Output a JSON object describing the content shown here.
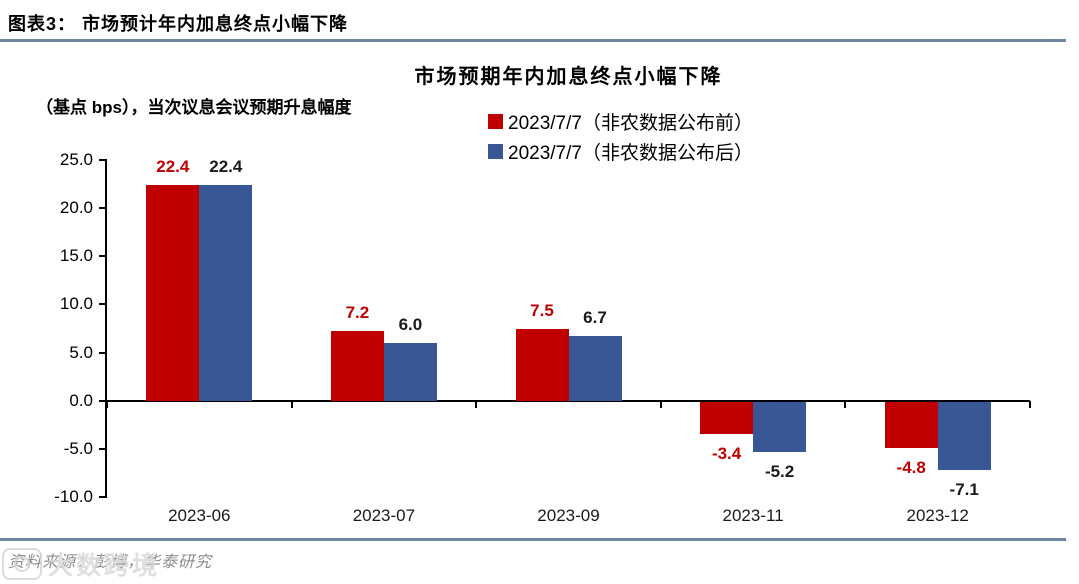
{
  "header": {
    "title": "图表3：  市场预计年内加息终点小幅下降"
  },
  "chart_data": {
    "type": "bar",
    "title": "市场预期年内加息终点小幅下降",
    "unit_label": "（基点 bps），当次议息会议预期升息幅度",
    "categories": [
      "2023-06",
      "2023-07",
      "2023-09",
      "2023-11",
      "2023-12"
    ],
    "series": [
      {
        "name": "2023/7/7（非农数据公布前）",
        "color": "#c00000",
        "label_color": "#c00000",
        "values": [
          22.4,
          7.2,
          7.5,
          -3.4,
          -4.8
        ]
      },
      {
        "name": "2023/7/7（非农数据公布后）",
        "color": "#3a5795",
        "label_color": "#1a1a1a",
        "values": [
          22.4,
          6.0,
          6.7,
          -5.2,
          -7.1
        ]
      }
    ],
    "ylim": [
      -10,
      25
    ],
    "ytick_step": 5,
    "yticks": [
      "25.0",
      "20.0",
      "15.0",
      "10.0",
      "5.0",
      "0.0",
      "-5.0",
      "-10.0"
    ],
    "grid": false,
    "legend_position": "top-right"
  },
  "footer": {
    "source": "资料来源：彭博，华泰研究"
  },
  "watermark": {
    "text": "大数跨境"
  },
  "colors": {
    "accent_line": "#6d87a3",
    "red": "#c00000",
    "blue": "#3a5795"
  }
}
